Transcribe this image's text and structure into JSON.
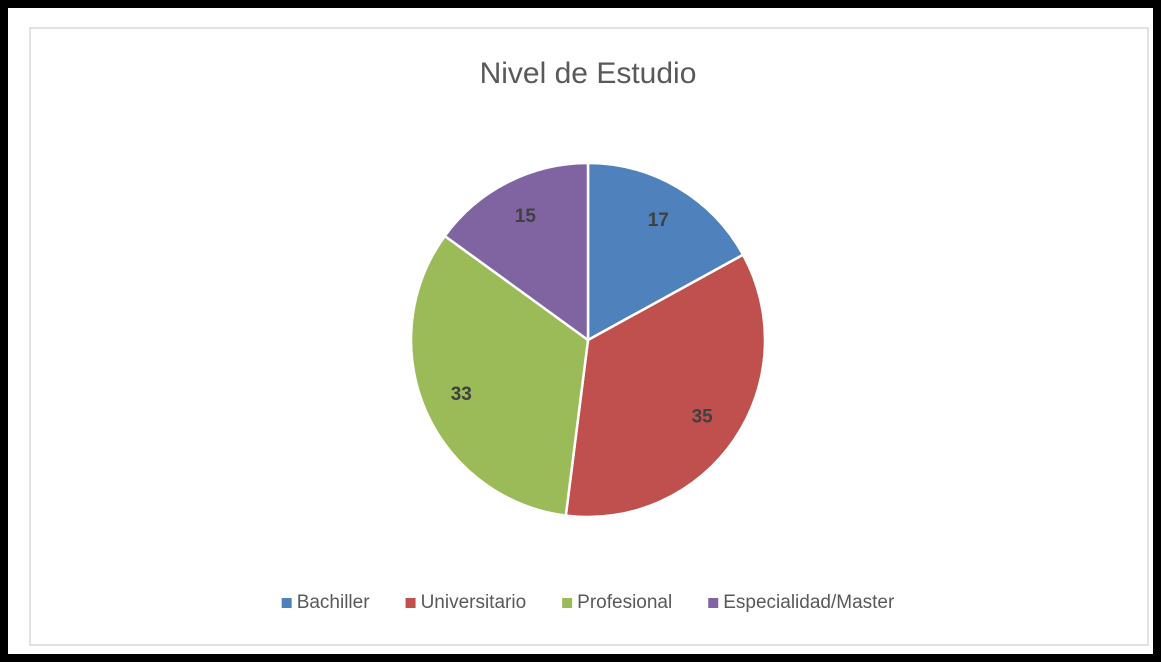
{
  "chart_data": {
    "type": "pie",
    "title": "Nivel de Estudio",
    "categories": [
      "Bachiller",
      "Universitario",
      "Profesional",
      "Especialidad/Master"
    ],
    "values": [
      17,
      35,
      33,
      15
    ],
    "colors": [
      "#4f81bd",
      "#c0504d",
      "#9bbb59",
      "#8064a2"
    ],
    "legend": "bottom"
  }
}
